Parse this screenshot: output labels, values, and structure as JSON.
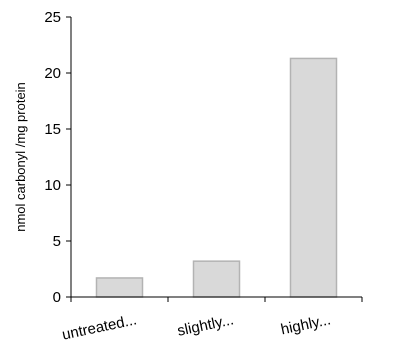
{
  "chart_data": {
    "type": "bar",
    "categories": [
      "untreated...",
      "slightly...",
      "highly..."
    ],
    "values": [
      1.7,
      3.2,
      21.3
    ],
    "title": "",
    "xlabel": "",
    "ylabel": "nmol carbonyl /mg protein",
    "ylim": [
      0,
      25
    ],
    "yticks": [
      0,
      5,
      10,
      15,
      20,
      25
    ],
    "grid": false,
    "legend": "none",
    "colors": {
      "bar_fill": "#d9d9d9",
      "bar_stroke": "#b3b3b3",
      "axis": "#000000"
    }
  }
}
